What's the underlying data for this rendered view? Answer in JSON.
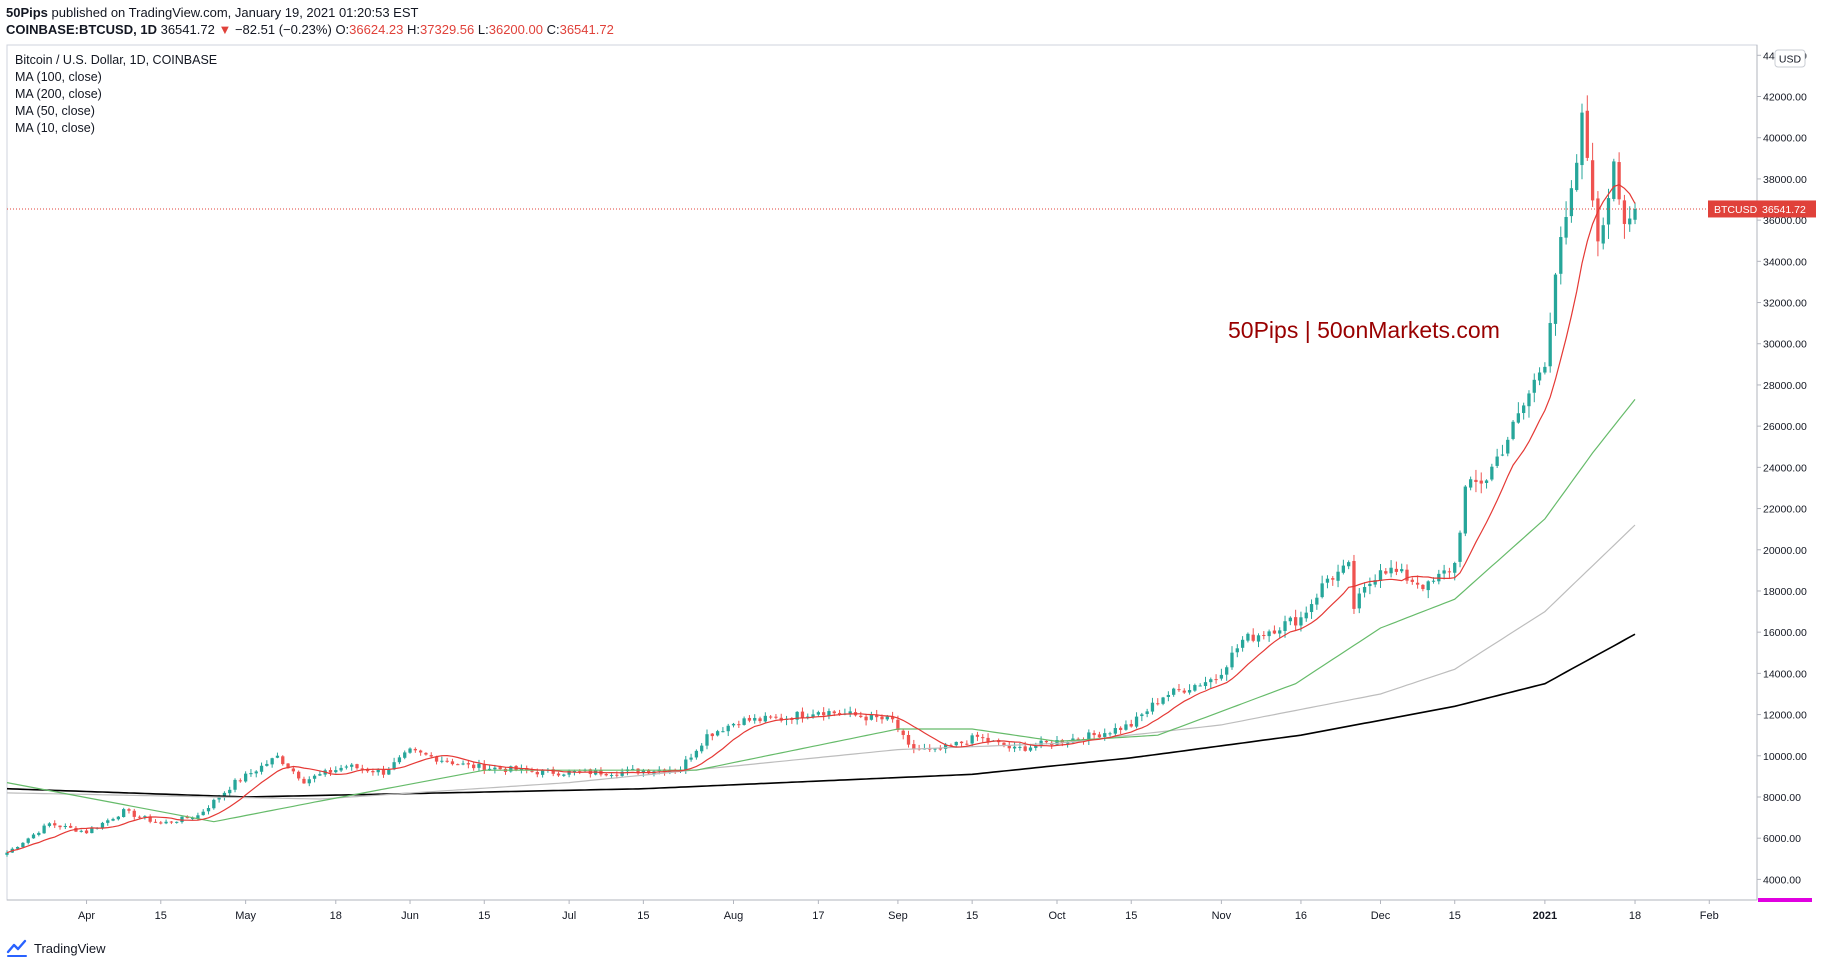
{
  "header": {
    "publisher": "50Pips",
    "published_text": "published on TradingView.com, January 19, 2021 01:20:53 EST",
    "symbol_interval": "COINBASE:BTCUSD, 1D",
    "last_price": "36541.72",
    "change_arrow": "▼",
    "change": "−82.51 (−0.23%)",
    "o_label": "O:",
    "o_value": "36624.23",
    "h_label": "H:",
    "h_value": "37329.56",
    "l_label": "L:",
    "l_value": "36200.00",
    "c_label": "C:",
    "c_value": "36541.72"
  },
  "legend": {
    "title": "Bitcoin / U.S. Dollar, 1D, COINBASE",
    "ma100": "MA (100, close)",
    "ma200": "MA (200, close)",
    "ma50": "MA (50, close)",
    "ma10": "MA (10, close)"
  },
  "watermark": "50Pips | 50onMarkets.com",
  "price_axis": {
    "currency": "USD",
    "ticks": [
      "4000.00",
      "6000.00",
      "8000.00",
      "10000.00",
      "12000.00",
      "14000.00",
      "16000.00",
      "18000.00",
      "20000.00",
      "22000.00",
      "24000.00",
      "26000.00",
      "28000.00",
      "30000.00",
      "32000.00",
      "34000.00",
      "36000.00",
      "38000.00",
      "40000.00",
      "42000.00",
      "44000.00"
    ],
    "last_label": "BTCUSD",
    "last_value": "36541.72"
  },
  "footer": {
    "brand": "TradingView"
  },
  "colors": {
    "up": "#26a69a",
    "down": "#ef5350",
    "ma10": "#e53935",
    "ma50": "#66bb6a",
    "ma100": "#bdbdbd",
    "ma200": "#000000",
    "watermark": "#990000",
    "price_line": "#e0413a"
  },
  "chart_data": {
    "type": "candlestick",
    "title": "Bitcoin / U.S. Dollar, 1D, COINBASE",
    "x_ticks": [
      "Apr",
      "15",
      "May",
      "18",
      "Jun",
      "15",
      "Jul",
      "15",
      "Aug",
      "17",
      "Sep",
      "15",
      "Oct",
      "15",
      "Nov",
      "16",
      "Dec",
      "15",
      "2021",
      "18",
      "Feb"
    ],
    "x_tick_dates": [
      "2020-04-01",
      "2020-04-15",
      "2020-05-01",
      "2020-05-18",
      "2020-06-01",
      "2020-06-15",
      "2020-07-01",
      "2020-07-15",
      "2020-08-01",
      "2020-08-17",
      "2020-09-01",
      "2020-09-15",
      "2020-10-01",
      "2020-10-15",
      "2020-11-01",
      "2020-11-16",
      "2020-12-01",
      "2020-12-15",
      "2021-01-01",
      "2021-01-18",
      "2021-02-01"
    ],
    "x_range": [
      "2020-03-17",
      "2021-02-10"
    ],
    "ylim": [
      3000,
      44500
    ],
    "last_close": 36541.72,
    "close_anchors": [
      [
        "2020-03-17",
        5300
      ],
      [
        "2020-03-25",
        6700
      ],
      [
        "2020-04-01",
        6300
      ],
      [
        "2020-04-08",
        7300
      ],
      [
        "2020-04-15",
        6700
      ],
      [
        "2020-04-22",
        7100
      ],
      [
        "2020-04-29",
        8700
      ],
      [
        "2020-05-07",
        9950
      ],
      [
        "2020-05-12",
        8800
      ],
      [
        "2020-05-20",
        9500
      ],
      [
        "2020-05-27",
        9200
      ],
      [
        "2020-06-01",
        10200
      ],
      [
        "2020-06-12",
        9500
      ],
      [
        "2020-06-26",
        9200
      ],
      [
        "2020-07-10",
        9200
      ],
      [
        "2020-07-22",
        9400
      ],
      [
        "2020-07-27",
        11000
      ],
      [
        "2020-08-02",
        11700
      ],
      [
        "2020-08-10",
        11800
      ],
      [
        "2020-08-17",
        12200
      ],
      [
        "2020-08-31",
        11700
      ],
      [
        "2020-09-03",
        10400
      ],
      [
        "2020-09-08",
        10200
      ],
      [
        "2020-09-16",
        10900
      ],
      [
        "2020-09-23",
        10300
      ],
      [
        "2020-10-01",
        10700
      ],
      [
        "2020-10-08",
        11000
      ],
      [
        "2020-10-15",
        11500
      ],
      [
        "2020-10-21",
        12900
      ],
      [
        "2020-10-31",
        13800
      ],
      [
        "2020-11-05",
        15600
      ],
      [
        "2020-11-16",
        16700
      ],
      [
        "2020-11-21",
        18600
      ],
      [
        "2020-11-25",
        19100
      ],
      [
        "2020-11-26",
        17200
      ],
      [
        "2020-12-01",
        19200
      ],
      [
        "2020-12-10",
        18200
      ],
      [
        "2020-12-15",
        19300
      ],
      [
        "2020-12-17",
        22900
      ],
      [
        "2020-12-21",
        23500
      ],
      [
        "2020-12-27",
        26400
      ],
      [
        "2021-01-01",
        29300
      ],
      [
        "2021-01-03",
        33500
      ],
      [
        "2021-01-06",
        37000
      ],
      [
        "2021-01-08",
        40700
      ],
      [
        "2021-01-10",
        37500
      ],
      [
        "2021-01-11",
        34500
      ],
      [
        "2021-01-13",
        37400
      ],
      [
        "2021-01-14",
        39200
      ],
      [
        "2021-01-16",
        36000
      ],
      [
        "2021-01-18",
        36541.72
      ]
    ],
    "ma200_anchors": [
      [
        "2020-03-17",
        8400
      ],
      [
        "2020-05-01",
        8000
      ],
      [
        "2020-07-15",
        8400
      ],
      [
        "2020-09-15",
        9100
      ],
      [
        "2020-10-15",
        9900
      ],
      [
        "2020-11-16",
        11000
      ],
      [
        "2020-12-15",
        12400
      ],
      [
        "2021-01-01",
        13500
      ],
      [
        "2021-01-18",
        15900
      ]
    ],
    "ma100_anchors": [
      [
        "2020-03-17",
        8200
      ],
      [
        "2020-05-15",
        7900
      ],
      [
        "2020-07-01",
        8700
      ],
      [
        "2020-09-01",
        10300
      ],
      [
        "2020-10-01",
        10600
      ],
      [
        "2020-11-01",
        11500
      ],
      [
        "2020-12-01",
        13000
      ],
      [
        "2020-12-15",
        14200
      ],
      [
        "2021-01-01",
        17000
      ],
      [
        "2021-01-18",
        21200
      ]
    ],
    "ma50_anchors": [
      [
        "2020-03-17",
        8700
      ],
      [
        "2020-04-25",
        6800
      ],
      [
        "2020-05-15",
        7800
      ],
      [
        "2020-06-15",
        9300
      ],
      [
        "2020-07-25",
        9300
      ],
      [
        "2020-09-01",
        11300
      ],
      [
        "2020-09-15",
        11300
      ],
      [
        "2020-10-01",
        10700
      ],
      [
        "2020-10-20",
        11000
      ],
      [
        "2020-11-15",
        13500
      ],
      [
        "2020-12-01",
        16200
      ],
      [
        "2020-12-15",
        17600
      ],
      [
        "2021-01-01",
        21500
      ],
      [
        "2021-01-10",
        24700
      ],
      [
        "2021-01-18",
        27300
      ]
    ]
  }
}
